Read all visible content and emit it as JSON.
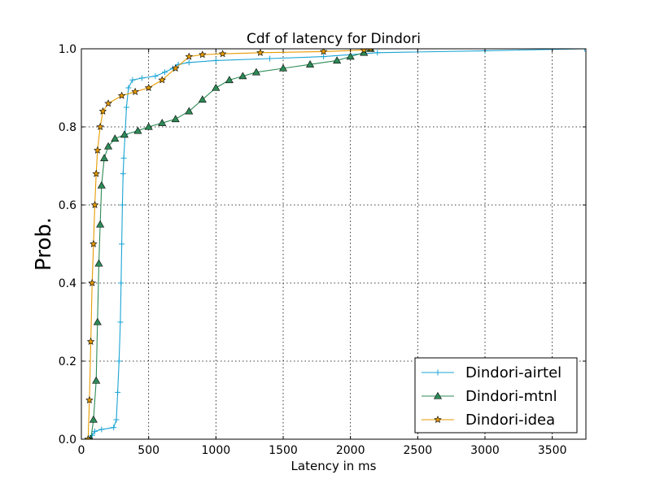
{
  "chart_data": {
    "type": "line",
    "title": "Cdf of latency for Dindori",
    "xlabel": "Latency in ms",
    "ylabel": "Prob.",
    "xlim": [
      0,
      3750
    ],
    "ylim": [
      0.0,
      1.0
    ],
    "x_ticks": [
      0,
      500,
      1000,
      1500,
      2000,
      2500,
      3000,
      3500
    ],
    "y_ticks": [
      "0.0",
      "0.2",
      "0.4",
      "0.6",
      "0.8",
      "1.0"
    ],
    "grid": true,
    "legend_position": "lower right",
    "series": [
      {
        "name": "Dindori-airtel",
        "color": "#1ba4d4",
        "marker": "plus",
        "points": [
          [
            60,
            0.0
          ],
          [
            80,
            0.01
          ],
          [
            100,
            0.02
          ],
          [
            150,
            0.025
          ],
          [
            240,
            0.03
          ],
          [
            260,
            0.05
          ],
          [
            270,
            0.12
          ],
          [
            280,
            0.2
          ],
          [
            290,
            0.3
          ],
          [
            295,
            0.4
          ],
          [
            300,
            0.5
          ],
          [
            305,
            0.6
          ],
          [
            310,
            0.68
          ],
          [
            315,
            0.72
          ],
          [
            325,
            0.78
          ],
          [
            335,
            0.85
          ],
          [
            350,
            0.9
          ],
          [
            380,
            0.92
          ],
          [
            450,
            0.925
          ],
          [
            550,
            0.93
          ],
          [
            620,
            0.94
          ],
          [
            680,
            0.95
          ],
          [
            720,
            0.96
          ],
          [
            800,
            0.965
          ],
          [
            1000,
            0.97
          ],
          [
            1400,
            0.975
          ],
          [
            1800,
            0.98
          ],
          [
            2200,
            0.99
          ],
          [
            3000,
            0.995
          ],
          [
            3740,
            1.0
          ]
        ]
      },
      {
        "name": "Dindori-mtnl",
        "color": "#2e8b57",
        "marker": "triangle",
        "points": [
          [
            70,
            0.0
          ],
          [
            90,
            0.05
          ],
          [
            110,
            0.15
          ],
          [
            120,
            0.3
          ],
          [
            130,
            0.45
          ],
          [
            140,
            0.55
          ],
          [
            150,
            0.65
          ],
          [
            170,
            0.72
          ],
          [
            200,
            0.75
          ],
          [
            250,
            0.77
          ],
          [
            320,
            0.78
          ],
          [
            420,
            0.79
          ],
          [
            500,
            0.8
          ],
          [
            600,
            0.81
          ],
          [
            700,
            0.82
          ],
          [
            800,
            0.84
          ],
          [
            900,
            0.87
          ],
          [
            1000,
            0.9
          ],
          [
            1100,
            0.92
          ],
          [
            1200,
            0.93
          ],
          [
            1300,
            0.94
          ],
          [
            1500,
            0.95
          ],
          [
            1700,
            0.96
          ],
          [
            1900,
            0.97
          ],
          [
            2000,
            0.98
          ],
          [
            2100,
            0.99
          ],
          [
            2150,
            1.0
          ]
        ]
      },
      {
        "name": "Dindori-idea",
        "color": "#e69b00",
        "marker": "star",
        "points": [
          [
            50,
            0.0
          ],
          [
            60,
            0.1
          ],
          [
            70,
            0.25
          ],
          [
            80,
            0.4
          ],
          [
            90,
            0.5
          ],
          [
            100,
            0.6
          ],
          [
            110,
            0.68
          ],
          [
            120,
            0.74
          ],
          [
            140,
            0.8
          ],
          [
            160,
            0.84
          ],
          [
            200,
            0.86
          ],
          [
            300,
            0.88
          ],
          [
            400,
            0.89
          ],
          [
            500,
            0.9
          ],
          [
            600,
            0.92
          ],
          [
            700,
            0.95
          ],
          [
            800,
            0.98
          ],
          [
            900,
            0.985
          ],
          [
            1050,
            0.987
          ],
          [
            1330,
            0.99
          ],
          [
            1800,
            0.993
          ],
          [
            2100,
            0.997
          ],
          [
            2150,
            1.0
          ]
        ]
      }
    ]
  }
}
